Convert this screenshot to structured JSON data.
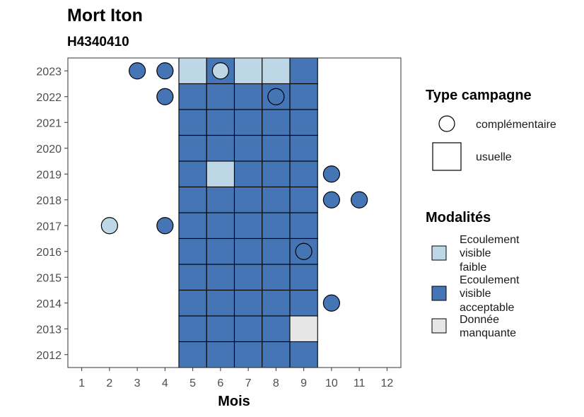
{
  "chart_data": {
    "type": "heatmap",
    "title": "Mort Iton",
    "subtitle": "H4340410",
    "xlabel": "Mois",
    "ylabel": "",
    "x_ticks": [
      "1",
      "2",
      "3",
      "4",
      "5",
      "6",
      "7",
      "8",
      "9",
      "10",
      "11",
      "12"
    ],
    "y_ticks": [
      "2012",
      "2013",
      "2014",
      "2015",
      "2016",
      "2017",
      "2018",
      "2019",
      "2020",
      "2021",
      "2022",
      "2023"
    ],
    "xlim": [
      0.5,
      12.5
    ],
    "ylim": [
      2011.5,
      2023.5
    ],
    "legend_placement": "right",
    "colors": {
      "faible": "#bdd7e7",
      "acceptable": "#4575b4",
      "manquante": "#e6e6e6",
      "panel_border": "#333333",
      "tick": "#4d4d4d"
    },
    "legend_type": {
      "title": "Type campagne",
      "items": [
        {
          "label": "complémentaire",
          "shape": "circle"
        },
        {
          "label": "usuelle",
          "shape": "square"
        }
      ]
    },
    "legend_modalites": {
      "title": "Modalités",
      "items": [
        {
          "key": "faible",
          "lines": [
            "Ecoulement",
            "visible",
            "faible"
          ]
        },
        {
          "key": "acceptable",
          "lines": [
            "Ecoulement",
            "visible",
            "acceptable"
          ]
        },
        {
          "key": "manquante",
          "lines": [
            "Donnée",
            "manquante"
          ]
        }
      ]
    },
    "usuelle": [
      {
        "year": 2023,
        "month": 5,
        "mod": "faible"
      },
      {
        "year": 2023,
        "month": 6,
        "mod": "acceptable"
      },
      {
        "year": 2023,
        "month": 7,
        "mod": "faible"
      },
      {
        "year": 2023,
        "month": 8,
        "mod": "faible"
      },
      {
        "year": 2023,
        "month": 9,
        "mod": "acceptable"
      },
      {
        "year": 2022,
        "month": 5,
        "mod": "acceptable"
      },
      {
        "year": 2022,
        "month": 6,
        "mod": "acceptable"
      },
      {
        "year": 2022,
        "month": 7,
        "mod": "acceptable"
      },
      {
        "year": 2022,
        "month": 8,
        "mod": "acceptable"
      },
      {
        "year": 2022,
        "month": 9,
        "mod": "acceptable"
      },
      {
        "year": 2021,
        "month": 5,
        "mod": "acceptable"
      },
      {
        "year": 2021,
        "month": 6,
        "mod": "acceptable"
      },
      {
        "year": 2021,
        "month": 7,
        "mod": "acceptable"
      },
      {
        "year": 2021,
        "month": 8,
        "mod": "acceptable"
      },
      {
        "year": 2021,
        "month": 9,
        "mod": "acceptable"
      },
      {
        "year": 2020,
        "month": 5,
        "mod": "acceptable"
      },
      {
        "year": 2020,
        "month": 6,
        "mod": "acceptable"
      },
      {
        "year": 2020,
        "month": 7,
        "mod": "acceptable"
      },
      {
        "year": 2020,
        "month": 8,
        "mod": "acceptable"
      },
      {
        "year": 2020,
        "month": 9,
        "mod": "acceptable"
      },
      {
        "year": 2019,
        "month": 5,
        "mod": "acceptable"
      },
      {
        "year": 2019,
        "month": 6,
        "mod": "faible"
      },
      {
        "year": 2019,
        "month": 7,
        "mod": "acceptable"
      },
      {
        "year": 2019,
        "month": 8,
        "mod": "acceptable"
      },
      {
        "year": 2019,
        "month": 9,
        "mod": "acceptable"
      },
      {
        "year": 2018,
        "month": 5,
        "mod": "acceptable"
      },
      {
        "year": 2018,
        "month": 6,
        "mod": "acceptable"
      },
      {
        "year": 2018,
        "month": 7,
        "mod": "acceptable"
      },
      {
        "year": 2018,
        "month": 8,
        "mod": "acceptable"
      },
      {
        "year": 2018,
        "month": 9,
        "mod": "acceptable"
      },
      {
        "year": 2017,
        "month": 5,
        "mod": "acceptable"
      },
      {
        "year": 2017,
        "month": 6,
        "mod": "acceptable"
      },
      {
        "year": 2017,
        "month": 7,
        "mod": "acceptable"
      },
      {
        "year": 2017,
        "month": 8,
        "mod": "acceptable"
      },
      {
        "year": 2017,
        "month": 9,
        "mod": "acceptable"
      },
      {
        "year": 2016,
        "month": 5,
        "mod": "acceptable"
      },
      {
        "year": 2016,
        "month": 6,
        "mod": "acceptable"
      },
      {
        "year": 2016,
        "month": 7,
        "mod": "acceptable"
      },
      {
        "year": 2016,
        "month": 8,
        "mod": "acceptable"
      },
      {
        "year": 2016,
        "month": 9,
        "mod": "acceptable"
      },
      {
        "year": 2015,
        "month": 5,
        "mod": "acceptable"
      },
      {
        "year": 2015,
        "month": 6,
        "mod": "acceptable"
      },
      {
        "year": 2015,
        "month": 7,
        "mod": "acceptable"
      },
      {
        "year": 2015,
        "month": 8,
        "mod": "acceptable"
      },
      {
        "year": 2015,
        "month": 9,
        "mod": "acceptable"
      },
      {
        "year": 2014,
        "month": 5,
        "mod": "acceptable"
      },
      {
        "year": 2014,
        "month": 6,
        "mod": "acceptable"
      },
      {
        "year": 2014,
        "month": 7,
        "mod": "acceptable"
      },
      {
        "year": 2014,
        "month": 8,
        "mod": "acceptable"
      },
      {
        "year": 2014,
        "month": 9,
        "mod": "acceptable"
      },
      {
        "year": 2013,
        "month": 5,
        "mod": "acceptable"
      },
      {
        "year": 2013,
        "month": 6,
        "mod": "acceptable"
      },
      {
        "year": 2013,
        "month": 7,
        "mod": "acceptable"
      },
      {
        "year": 2013,
        "month": 8,
        "mod": "acceptable"
      },
      {
        "year": 2013,
        "month": 9,
        "mod": "manquante"
      },
      {
        "year": 2012,
        "month": 5,
        "mod": "acceptable"
      },
      {
        "year": 2012,
        "month": 6,
        "mod": "acceptable"
      },
      {
        "year": 2012,
        "month": 7,
        "mod": "acceptable"
      },
      {
        "year": 2012,
        "month": 8,
        "mod": "acceptable"
      },
      {
        "year": 2012,
        "month": 9,
        "mod": "acceptable"
      }
    ],
    "complementaire": [
      {
        "year": 2023,
        "month": 3,
        "mod": "acceptable"
      },
      {
        "year": 2023,
        "month": 4,
        "mod": "acceptable"
      },
      {
        "year": 2023,
        "month": 6,
        "mod": "faible"
      },
      {
        "year": 2022,
        "month": 4,
        "mod": "acceptable"
      },
      {
        "year": 2022,
        "month": 8,
        "mod": "acceptable"
      },
      {
        "year": 2019,
        "month": 10,
        "mod": "acceptable"
      },
      {
        "year": 2018,
        "month": 10,
        "mod": "acceptable"
      },
      {
        "year": 2018,
        "month": 11,
        "mod": "acceptable"
      },
      {
        "year": 2017,
        "month": 2,
        "mod": "faible"
      },
      {
        "year": 2017,
        "month": 4,
        "mod": "acceptable"
      },
      {
        "year": 2016,
        "month": 9,
        "mod": "acceptable"
      },
      {
        "year": 2014,
        "month": 10,
        "mod": "acceptable"
      }
    ]
  }
}
